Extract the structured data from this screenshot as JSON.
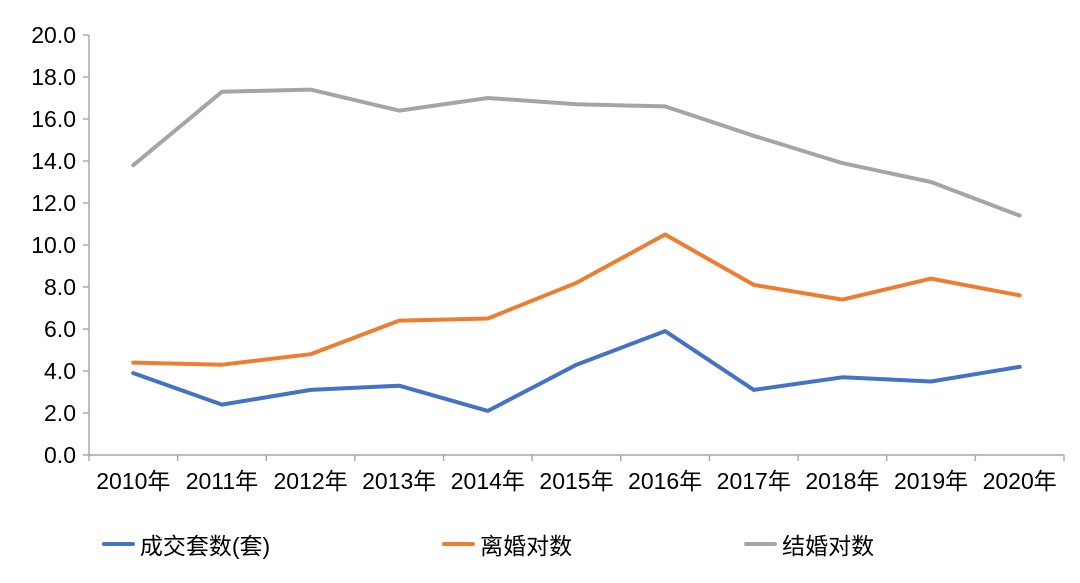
{
  "chart_data": {
    "type": "line",
    "title": "",
    "xlabel": "",
    "ylabel": "",
    "categories": [
      "2010年",
      "2011年",
      "2012年",
      "2013年",
      "2014年",
      "2015年",
      "2016年",
      "2017年",
      "2018年",
      "2019年",
      "2020年"
    ],
    "series": [
      {
        "name": "成交套数(套)",
        "color": "#4472c4",
        "values": [
          3.9,
          2.4,
          3.1,
          3.3,
          2.1,
          4.3,
          5.9,
          3.1,
          3.7,
          3.5,
          4.2
        ]
      },
      {
        "name": "离婚对数",
        "color": "#ed7d31",
        "values": [
          4.4,
          4.3,
          4.8,
          6.4,
          6.5,
          8.2,
          10.5,
          8.1,
          7.4,
          8.4,
          7.6
        ]
      },
      {
        "name": "结婚对数",
        "color": "#a5a5a5",
        "values": [
          13.8,
          17.3,
          17.4,
          16.4,
          17.0,
          16.7,
          16.6,
          15.2,
          13.9,
          13.0,
          11.4
        ]
      }
    ],
    "ylim": [
      0,
      20
    ],
    "y_tick_step": 2,
    "y_tick_labels": [
      "0.0",
      "2.0",
      "4.0",
      "6.0",
      "8.0",
      "10.0",
      "12.0",
      "14.0",
      "16.0",
      "18.0",
      "20.0"
    ],
    "grid": false,
    "legend_position": "bottom",
    "axis_color": "#a6a6a6",
    "label_color": "#000000"
  }
}
